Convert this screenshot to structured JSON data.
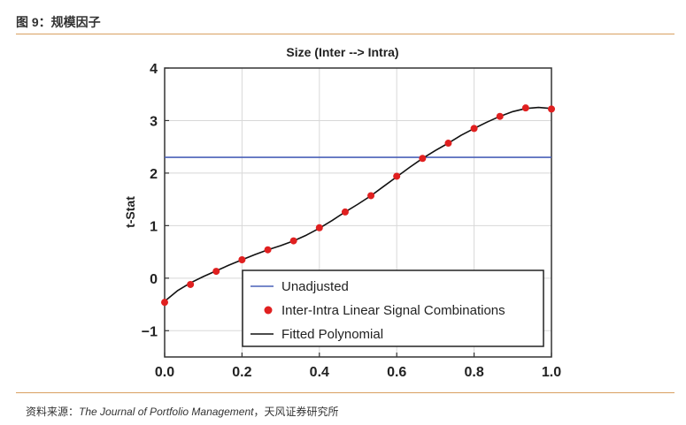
{
  "figure": {
    "label": "图 9：规模因子",
    "source_prefix": "资料来源：",
    "source_journal": "The Journal of Portfolio Management",
    "source_suffix": "，天风证券研究所"
  },
  "chart_data": {
    "type": "scatter",
    "title": "Size (Inter --> Intra)",
    "xlabel": "",
    "ylabel": "t-Stat",
    "xlim": [
      0.0,
      1.0
    ],
    "ylim": [
      -1.5,
      4.0
    ],
    "grid": true,
    "x_ticks": [
      0.0,
      0.2,
      0.4,
      0.6,
      0.8,
      1.0
    ],
    "x_tick_labels": [
      "0.0",
      "0.2",
      "0.4",
      "0.6",
      "0.8",
      "1.0"
    ],
    "y_ticks": [
      -1,
      0,
      1,
      2,
      3,
      4
    ],
    "y_tick_labels": [
      "−1",
      "0",
      "1",
      "2",
      "3",
      "4"
    ],
    "legend_position": "bottom-right",
    "series": [
      {
        "name": "Unadjusted",
        "kind": "hline",
        "color": "#4a60b8",
        "y": 2.3
      },
      {
        "name": "Inter-Intra Linear Signal Combinations",
        "kind": "scatter",
        "color": "#e02020",
        "x": [
          0.0,
          0.0667,
          0.1333,
          0.2,
          0.2667,
          0.3333,
          0.4,
          0.4667,
          0.5333,
          0.6,
          0.6667,
          0.7333,
          0.8,
          0.8667,
          0.9333,
          1.0
        ],
        "y": [
          -0.46,
          -0.12,
          0.13,
          0.35,
          0.54,
          0.71,
          0.96,
          1.26,
          1.57,
          1.94,
          2.28,
          2.57,
          2.85,
          3.08,
          3.24,
          3.22
        ]
      },
      {
        "name": "Fitted Polynomial",
        "kind": "line",
        "color": "#111111",
        "x": [
          0.0,
          0.033,
          0.0667,
          0.1,
          0.1333,
          0.1667,
          0.2,
          0.2333,
          0.2667,
          0.3,
          0.3333,
          0.3667,
          0.4,
          0.4333,
          0.4667,
          0.5,
          0.5333,
          0.5667,
          0.6,
          0.6333,
          0.6667,
          0.7,
          0.7333,
          0.7667,
          0.8,
          0.8333,
          0.8667,
          0.9,
          0.9333,
          0.9667,
          1.0
        ],
        "y": [
          -0.44,
          -0.24,
          -0.09,
          0.03,
          0.14,
          0.25,
          0.35,
          0.45,
          0.54,
          0.62,
          0.71,
          0.82,
          0.95,
          1.1,
          1.26,
          1.41,
          1.57,
          1.75,
          1.93,
          2.11,
          2.28,
          2.43,
          2.57,
          2.72,
          2.85,
          2.97,
          3.08,
          3.17,
          3.23,
          3.25,
          3.23
        ]
      }
    ]
  }
}
